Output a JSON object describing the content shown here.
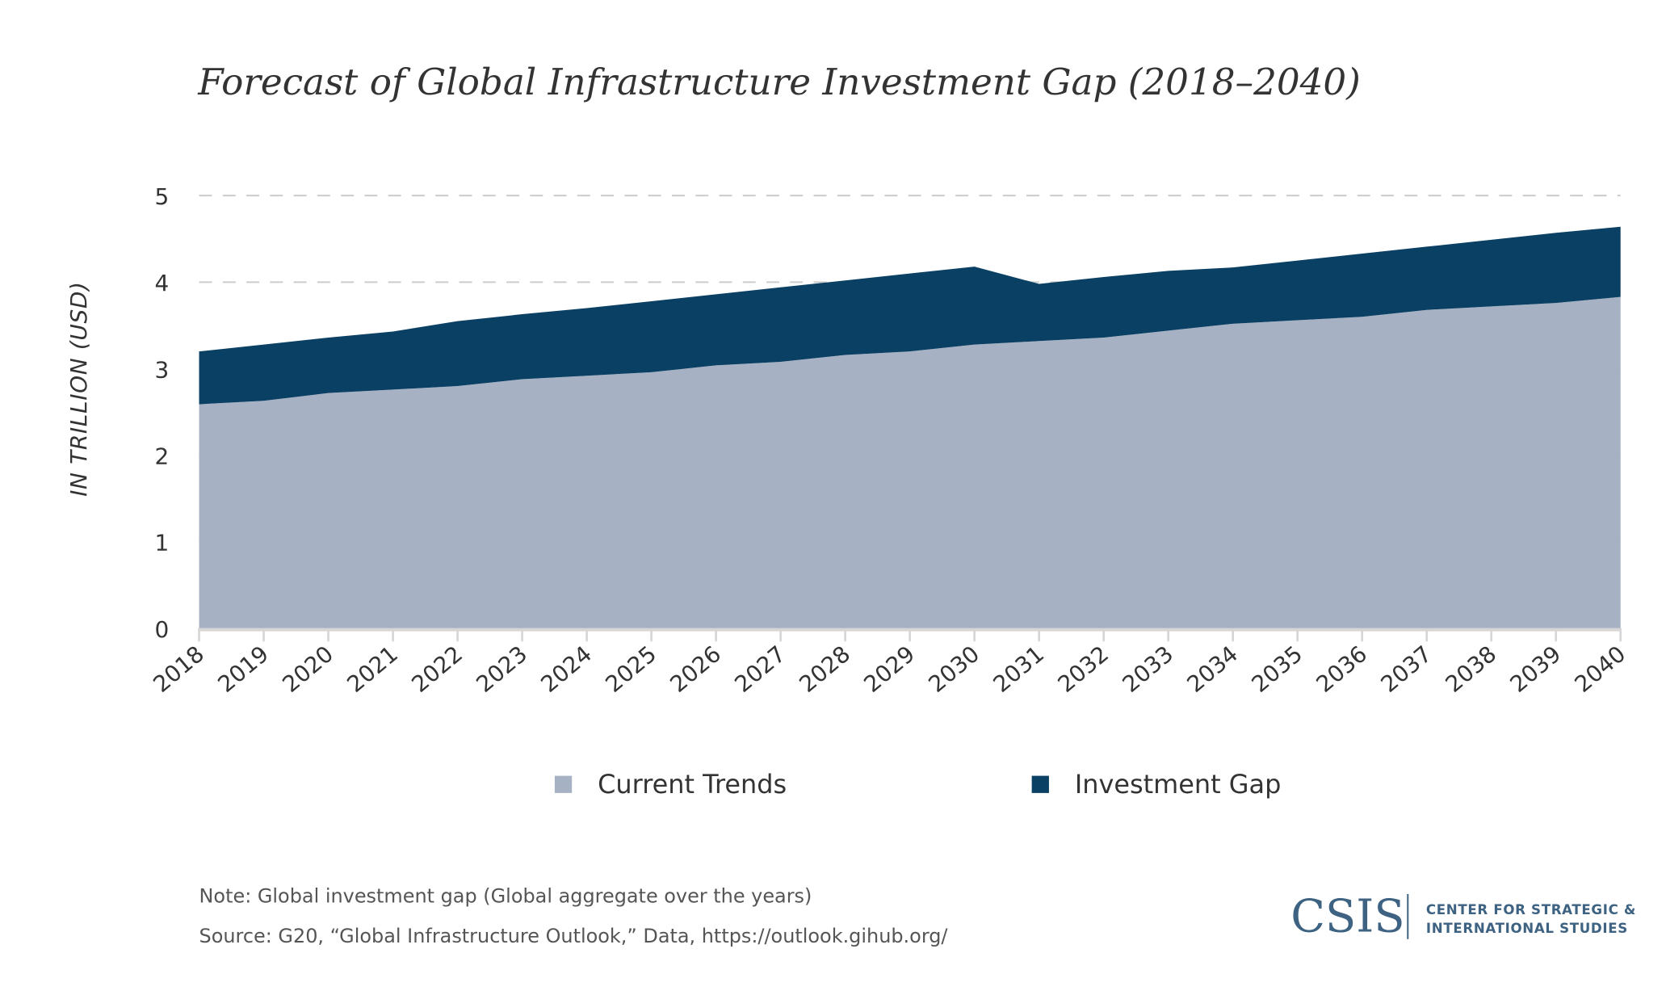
{
  "chart_data": {
    "type": "area",
    "stacked": true,
    "title": "Forecast of Global Infrastructure Investment Gap (2018–2040)",
    "ylabel": "IN TRILLION (USD)",
    "xlabel": "",
    "ylim": [
      0,
      5
    ],
    "yticks": [
      0,
      1,
      2,
      3,
      4,
      5
    ],
    "grid": "horizontal dashed",
    "legend_position": "bottom",
    "x": [
      "2018",
      "2019",
      "2020",
      "2021",
      "2022",
      "2023",
      "2024",
      "2025",
      "2026",
      "2027",
      "2028",
      "2029",
      "2030",
      "2031",
      "2032",
      "2033",
      "2034",
      "2035",
      "2036",
      "2037",
      "2038",
      "2039",
      "2040"
    ],
    "series": [
      {
        "name": "Current Trends",
        "color": "#a7b1c4",
        "values": [
          2.59,
          2.63,
          2.72,
          2.76,
          2.8,
          2.88,
          2.92,
          2.96,
          3.04,
          3.08,
          3.16,
          3.2,
          3.28,
          3.32,
          3.36,
          3.44,
          3.52,
          3.56,
          3.6,
          3.68,
          3.72,
          3.76,
          3.83
        ]
      },
      {
        "name": "Investment Gap",
        "color": "#0a4064",
        "values": [
          0.61,
          0.65,
          0.64,
          0.67,
          0.75,
          0.75,
          0.78,
          0.82,
          0.82,
          0.86,
          0.86,
          0.9,
          0.9,
          0.66,
          0.7,
          0.69,
          0.65,
          0.69,
          0.73,
          0.73,
          0.77,
          0.81,
          0.81
        ]
      }
    ]
  },
  "footer": {
    "note": "Note: Global investment gap (Global aggregate over the years)",
    "source": "Source: G20, “Global Infrastructure Outlook,” Data, https://outlook.gihub.org/"
  },
  "logo": {
    "mark": "CSIS",
    "line1": "CENTER FOR STRATEGIC &",
    "line2": "INTERNATIONAL STUDIES",
    "color": "#3d6282"
  }
}
